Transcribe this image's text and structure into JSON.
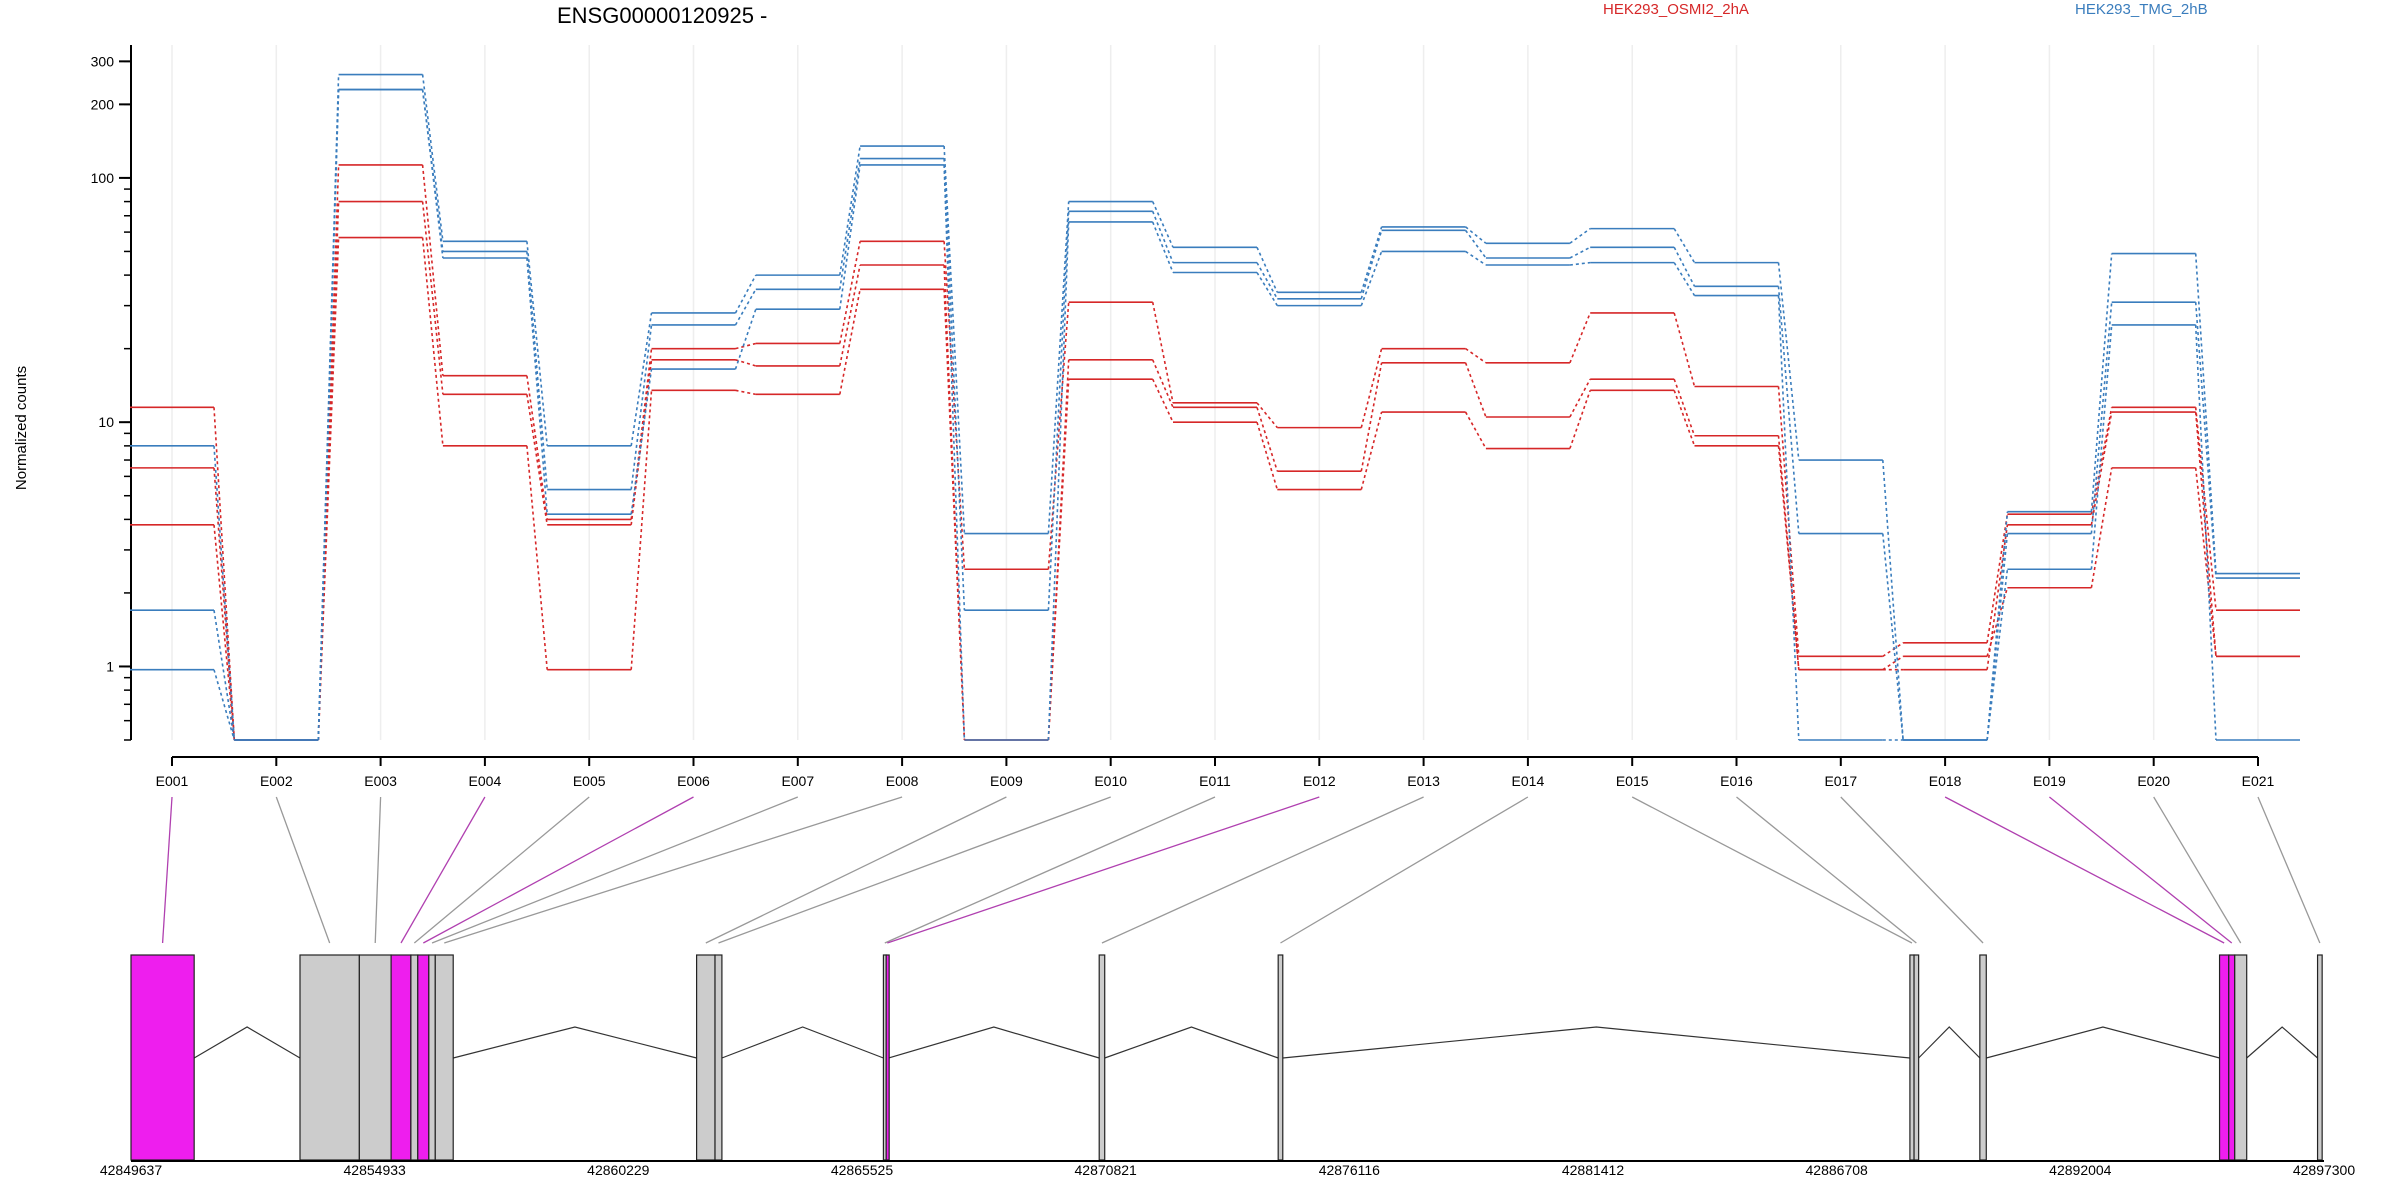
{
  "chart_data": {
    "type": "line",
    "title": "ENSG00000120925 -",
    "xlabel": "",
    "ylabel": "Normalized counts",
    "yscale": "log",
    "ylim": [
      0.5,
      350
    ],
    "yticks": [
      1,
      10,
      100,
      200,
      300
    ],
    "grid": "vertical",
    "legend_position": "top",
    "colors": {
      "osmi": "#d62728",
      "tmg": "#3a7dbd",
      "exon": "#cccccc",
      "exon_highlight": "#ee1eee",
      "connector_highlight": "#b040b0",
      "connector": "#999999"
    },
    "categories": [
      "E001",
      "E002",
      "E003",
      "E004",
      "E005",
      "E006",
      "E007",
      "E008",
      "E009",
      "E010",
      "E011",
      "E012",
      "E013",
      "E014",
      "E015",
      "E016",
      "E017",
      "E018",
      "E019",
      "E020",
      "E021"
    ],
    "series": [
      {
        "name": "HEK293_OSMI2_2hA",
        "group": "osmi",
        "values": [
          11.5,
          0.5,
          113,
          15.5,
          4,
          20,
          21,
          55,
          2.5,
          31,
          12,
          9.5,
          20,
          17.5,
          28,
          14,
          1.1,
          1.25,
          4.2,
          11.5,
          1.7
        ]
      },
      {
        "group": "osmi",
        "values": [
          6.5,
          0.5,
          80,
          13,
          3.8,
          18,
          17,
          44,
          0.5,
          18,
          11.5,
          6.3,
          17.5,
          10.5,
          15,
          8.8,
          0.97,
          0.97,
          3.8,
          11,
          1.1
        ]
      },
      {
        "group": "osmi",
        "values": [
          3.8,
          0.5,
          57,
          8,
          0.97,
          13.5,
          13,
          35,
          0.5,
          15,
          10,
          5.3,
          11,
          7.8,
          13.5,
          8,
          0.97,
          1.1,
          2.1,
          6.5,
          1.1
        ]
      },
      {
        "name": "HEK293_TMG_2hB",
        "group": "tmg",
        "values": [
          8,
          0.5,
          265,
          55,
          8,
          28,
          40,
          135,
          3.5,
          80,
          52,
          34,
          63,
          54,
          62,
          45,
          7,
          0.5,
          4.3,
          49,
          2.4
        ]
      },
      {
        "group": "tmg",
        "values": [
          1.7,
          0.5,
          230,
          50,
          5.3,
          25,
          35,
          120,
          1.7,
          73,
          45,
          32,
          61,
          47,
          52,
          36,
          3.5,
          0.5,
          3.5,
          31,
          2.3
        ]
      },
      {
        "group": "tmg",
        "values": [
          0.97,
          0.5,
          230,
          47,
          4.2,
          16.5,
          29,
          113,
          0.5,
          66,
          41,
          30,
          50,
          44,
          45,
          33,
          0.5,
          0.5,
          2.5,
          25,
          0.5
        ]
      }
    ],
    "genome": {
      "tick_labels": [
        "42849637",
        "42854933",
        "42860229",
        "42865525",
        "42870821",
        "42876116",
        "42881412",
        "42886708",
        "42892004",
        "42897300"
      ],
      "xlim": [
        42849637,
        42897300
      ],
      "exons": [
        {
          "id": "E001",
          "start": 42849637,
          "end": 42851010,
          "highlight": true
        },
        {
          "id": "E002",
          "start": 42853310,
          "end": 42854600,
          "highlight": false
        },
        {
          "id": "E003",
          "start": 42854600,
          "end": 42855290,
          "highlight": false
        },
        {
          "id": "E004",
          "start": 42855290,
          "end": 42855720,
          "highlight": true
        },
        {
          "id": "E005",
          "start": 42855720,
          "end": 42855870,
          "highlight": false
        },
        {
          "id": "E006",
          "start": 42855870,
          "end": 42856110,
          "highlight": true
        },
        {
          "id": "E007",
          "start": 42856110,
          "end": 42856250,
          "highlight": false
        },
        {
          "id": "E008",
          "start": 42856250,
          "end": 42856640,
          "highlight": false
        },
        {
          "id": "E009",
          "start": 42861930,
          "end": 42862330,
          "highlight": false
        },
        {
          "id": "E010",
          "start": 42862330,
          "end": 42862480,
          "highlight": false
        },
        {
          "id": "E011",
          "start": 42865990,
          "end": 42866050,
          "highlight": false
        },
        {
          "id": "E012",
          "start": 42866050,
          "end": 42866100,
          "highlight": true
        },
        {
          "id": "E013",
          "start": 42870680,
          "end": 42870800,
          "highlight": false
        },
        {
          "id": "E014",
          "start": 42874570,
          "end": 42874670,
          "highlight": false
        },
        {
          "id": "E015",
          "start": 42888300,
          "end": 42888390,
          "highlight": false
        },
        {
          "id": "E016",
          "start": 42888390,
          "end": 42888490,
          "highlight": false
        },
        {
          "id": "E017",
          "start": 42889820,
          "end": 42889960,
          "highlight": false
        },
        {
          "id": "E018",
          "start": 42895030,
          "end": 42895230,
          "highlight": true
        },
        {
          "id": "E019",
          "start": 42895230,
          "end": 42895360,
          "highlight": true
        },
        {
          "id": "E020",
          "start": 42895360,
          "end": 42895620,
          "highlight": false
        },
        {
          "id": "E021",
          "start": 42897160,
          "end": 42897260,
          "highlight": false
        }
      ]
    }
  }
}
